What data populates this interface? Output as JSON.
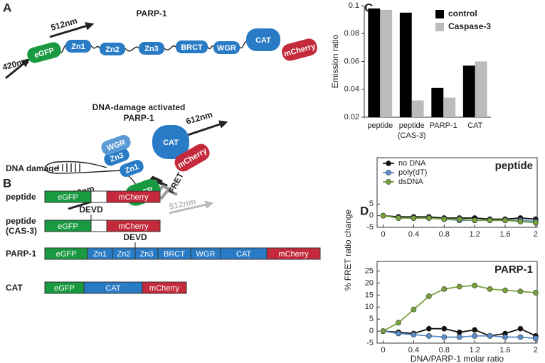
{
  "panels": {
    "A": {
      "letter": "A",
      "title": "PARP-1",
      "emission": "512nm",
      "excitation": "420nm",
      "domains": [
        {
          "text": "eGFP",
          "color": "#1a9a40"
        },
        {
          "text": "Zn1",
          "color": "#2a7bc6"
        },
        {
          "text": "Zn2",
          "color": "#2a7bc6"
        },
        {
          "text": "Zn3",
          "color": "#2a7bc6"
        },
        {
          "text": "BRCT",
          "color": "#2a7bc6"
        },
        {
          "text": "WGR",
          "color": "#2a7bc6"
        },
        {
          "text": "CAT",
          "color": "#2a7bc6"
        },
        {
          "text": "mCherry",
          "color": "#c42a3b"
        }
      ],
      "activated_title": [
        "DNA-damage activated",
        "PARP-1"
      ],
      "condition": "DNA damage",
      "folded_domains": [
        {
          "text": "Zn3",
          "color": "#2a7bc6"
        },
        {
          "text": "WGR",
          "color": "#5a9ad6"
        },
        {
          "text": "Zn1",
          "color": "#2a7bc6"
        },
        {
          "text": "CAT",
          "color": "#2a7bc6"
        },
        {
          "text": "mCherry",
          "color": "#c42a3b"
        },
        {
          "text": "eGFP",
          "color": "#1a9a40"
        }
      ],
      "red_emission": "612nm",
      "fret": "FRET",
      "excitation_2": "420nm",
      "green_emission_2": "512nm"
    },
    "B": {
      "letter": "B",
      "cleavage_site": "DEVD",
      "constructs": [
        {
          "label": [
            "peptide"
          ],
          "segments": [
            {
              "text": "eGFP",
              "color": "#1a9a40"
            },
            {
              "color": "#ffffff"
            },
            {
              "text": "mCherry",
              "color": "#c42a3b"
            }
          ]
        },
        {
          "label": [
            "peptide",
            "(CAS-3)"
          ],
          "site": true,
          "segments": [
            {
              "text": "eGFP",
              "color": "#1a9a40"
            },
            {
              "color": "#ffffff"
            },
            {
              "text": "mCherry",
              "color": "#c42a3b"
            }
          ]
        },
        {
          "label": [
            "PARP-1"
          ],
          "site": true,
          "segments": [
            {
              "text": "eGFP",
              "color": "#1a9a40"
            },
            {
              "text": "Zn1",
              "color": "#2a7bc6"
            },
            {
              "text": "Zn2",
              "color": "#2a7bc6"
            },
            {
              "text": "Zn3",
              "color": "#2a7bc6"
            },
            {
              "text": "BRCT",
              "color": "#2a7bc6"
            },
            {
              "text": "WGR",
              "color": "#2a7bc6"
            },
            {
              "text": "CAT",
              "color": "#2a7bc6"
            },
            {
              "text": "mCherry",
              "color": "#c42a3b"
            }
          ]
        },
        {
          "label": [
            "CAT"
          ],
          "segments": [
            {
              "text": "eGFP",
              "color": "#1a9a40"
            },
            {
              "text": "CAT",
              "color": "#2a7bc6"
            },
            {
              "text": "mCherry",
              "color": "#c42a3b"
            }
          ]
        }
      ]
    },
    "C": {
      "letter": "C"
    },
    "D": {
      "letter": "D"
    }
  },
  "chart_data": [
    {
      "type": "bar",
      "ylabel": "Emission ratio",
      "categories": [
        "peptide",
        "peptide (CAS-3)",
        "PARP-1",
        "CAT"
      ],
      "series": [
        {
          "name": "control",
          "color": "#000000",
          "values": [
            0.098,
            0.095,
            0.041,
            0.057
          ]
        },
        {
          "name": "Caspase-3",
          "color": "#bbbbbb",
          "values": [
            0.097,
            0.032,
            0.034,
            0.06
          ]
        }
      ],
      "ylim": [
        0.02,
        0.1
      ],
      "yticks": [
        0.02,
        0.04,
        0.06,
        0.08,
        0.1
      ],
      "legend": "upper right"
    },
    {
      "type": "line",
      "title": "peptide",
      "ylabel": "% FRET ratio change",
      "x": [
        0,
        0.2,
        0.4,
        0.6,
        0.8,
        1.0,
        1.2,
        1.4,
        1.6,
        1.8,
        2.0
      ],
      "series": [
        {
          "name": "no DNA",
          "color": "#111111",
          "values": [
            0,
            -0.5,
            -0.5,
            -0.5,
            -1,
            -1,
            -1,
            -1.5,
            -1.5,
            -1,
            -1.5
          ]
        },
        {
          "name": "poly(dT)",
          "color": "#5b8fc9",
          "values": [
            0,
            -1,
            -1,
            -1,
            -1.5,
            -2,
            -2,
            -2,
            -2,
            -2,
            -2.5
          ]
        },
        {
          "name": "dsDNA",
          "color": "#77a33c",
          "values": [
            0,
            -1,
            -1,
            -1,
            -1.5,
            -1.5,
            -2,
            -2,
            -2,
            -2.5,
            -3
          ]
        }
      ],
      "xlim": [
        -0.08,
        2.02
      ],
      "xticks": [
        0,
        0.4,
        0.8,
        1.2,
        1.6,
        2
      ],
      "ylim": [
        -5,
        25
      ],
      "yticks": [
        -5,
        0,
        5
      ],
      "legend": "upper left"
    },
    {
      "type": "line",
      "title": "PARP-1",
      "xlabel": "DNA/PARP-1 molar ratio",
      "x": [
        0,
        0.2,
        0.4,
        0.6,
        0.8,
        1.0,
        1.2,
        1.4,
        1.6,
        1.8,
        2.0
      ],
      "series": [
        {
          "color": "#111111",
          "values": [
            0,
            -0.5,
            -1,
            1,
            1,
            -0.5,
            0.5,
            -2,
            -1,
            1,
            -2
          ]
        },
        {
          "color": "#5b8fc9",
          "values": [
            0,
            -1,
            -1.5,
            -2,
            -2.5,
            -2.5,
            -2,
            -2,
            -2.5,
            -2.5,
            -3
          ]
        },
        {
          "color": "#77a33c",
          "values": [
            0,
            3.5,
            9,
            14.5,
            17.5,
            18.5,
            19,
            17.5,
            17,
            16.5,
            16
          ]
        }
      ],
      "xlim": [
        -0.08,
        2.02
      ],
      "xticks": [
        0,
        0.4,
        0.8,
        1.2,
        1.6,
        2
      ],
      "ylim": [
        -5,
        29
      ],
      "yticks": [
        -5,
        0,
        5,
        10,
        15,
        20,
        25
      ]
    }
  ]
}
